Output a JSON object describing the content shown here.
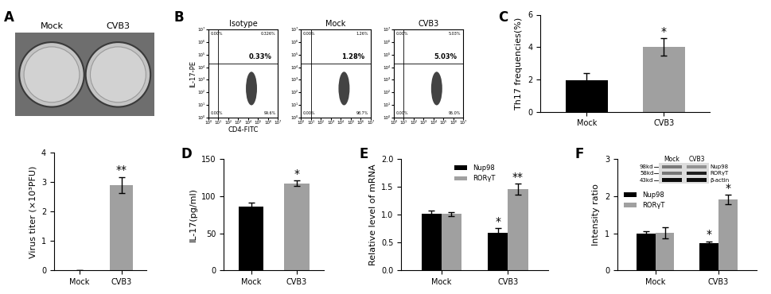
{
  "chart_data": [
    {
      "panel": "A",
      "type": "image",
      "labels": [
        "Mock",
        "CVB3"
      ]
    },
    {
      "type": "bar",
      "categories": [
        "Mock",
        "CVB3"
      ],
      "values": [
        0,
        2.9
      ],
      "errors": [
        0,
        0.28
      ],
      "significance": [
        null,
        "**"
      ],
      "colors": [
        "#000000",
        "#a0a0a0"
      ],
      "y_label": "Virus titer (×10³PFU)",
      "ylim": [
        0,
        4
      ],
      "yticks": [
        0,
        1,
        2,
        3,
        4
      ]
    },
    {
      "panel": "B",
      "type": "scatter",
      "log": true,
      "x_label": "CD4-FITC",
      "y_label": "IL-17-PE",
      "xlim": [
        1,
        10000000
      ],
      "ylim": [
        1,
        10000000
      ],
      "xticks": [
        {
          "value": 1,
          "label": "10⁰"
        },
        {
          "value": 10,
          "label": "10¹"
        },
        {
          "value": 100,
          "label": "10²"
        },
        {
          "value": 1000,
          "label": "10³"
        },
        {
          "value": 10000,
          "label": "10⁴"
        },
        {
          "value": 100000,
          "label": "10⁵"
        },
        {
          "value": 1000000,
          "label": "10⁶"
        },
        {
          "value": 10000000,
          "label": "10⁷"
        }
      ],
      "yticks": [
        {
          "value": 1,
          "label": "10⁰"
        },
        {
          "value": 10,
          "label": "10¹"
        },
        {
          "value": 100,
          "label": "10²"
        },
        {
          "value": 1000,
          "label": "10³"
        },
        {
          "value": 10000,
          "label": "10⁴"
        },
        {
          "value": 100000,
          "label": "10⁵"
        },
        {
          "value": 1000000,
          "label": "10⁶"
        },
        {
          "value": 10000000,
          "label": "10⁷"
        }
      ],
      "gate_x": 10,
      "gate_y": 20000,
      "plots": [
        {
          "title": "Isotype",
          "quadrant_values": [
            0.0,
            0.326,
            0.0,
            99.6
          ],
          "quadrant_labels": [
            "0.00%",
            "0.326%",
            "0.00%",
            "99.6%"
          ],
          "gated_value": 0.33,
          "gated_label": "0.33%"
        },
        {
          "title": "Mock",
          "quadrant_values": [
            0.0,
            1.26,
            0.0,
            98.7
          ],
          "quadrant_labels": [
            "0.00%",
            "1.26%",
            "0.00%",
            "98.7%"
          ],
          "gated_value": 1.28,
          "gated_label": "1.28%"
        },
        {
          "title": "CVB3",
          "quadrant_values": [
            0.0,
            5.03,
            0.0,
            95.0
          ],
          "quadrant_labels": [
            "0.00%",
            "5.03%",
            "0.00%",
            "95.0%"
          ],
          "gated_value": 5.03,
          "gated_label": "5.03%"
        }
      ]
    },
    {
      "panel": "C",
      "type": "bar",
      "categories": [
        "Mock",
        "CVB3"
      ],
      "values": [
        1.95,
        4.0
      ],
      "errors": [
        0.45,
        0.55
      ],
      "significance": [
        null,
        "*"
      ],
      "colors": [
        "#000000",
        "#a0a0a0"
      ],
      "y_label": "Th17 frequencies(%)",
      "ylim": [
        0,
        6
      ],
      "yticks": [
        0,
        2,
        4,
        6
      ]
    },
    {
      "panel": "D",
      "type": "bar",
      "categories": [
        "Mock",
        "CVB3"
      ],
      "values": [
        86,
        117
      ],
      "errors": [
        5,
        4
      ],
      "significance": [
        null,
        "*"
      ],
      "colors": [
        "#000000",
        "#a0a0a0"
      ],
      "y_label": "IL-17(pg/ml)",
      "ylim": [
        0,
        150
      ],
      "yticks": [
        0,
        50,
        100,
        150
      ]
    },
    {
      "panel": "E",
      "type": "bar",
      "categories": [
        "Mock",
        "CVB3"
      ],
      "legend": "upper center",
      "series": [
        {
          "name": "Nup98",
          "color": "#000000",
          "values": [
            1.02,
            0.68
          ],
          "errors": [
            0.05,
            0.08
          ],
          "significance": [
            null,
            "*"
          ]
        },
        {
          "name": "RORγT",
          "color": "#a0a0a0",
          "values": [
            1.01,
            1.45
          ],
          "errors": [
            0.03,
            0.1
          ],
          "significance": [
            null,
            "**"
          ]
        }
      ],
      "y_label": "Relative level of mRNA",
      "ylim": [
        0,
        2
      ],
      "yticks": [
        {
          "value": 0,
          "label": "0.0"
        },
        {
          "value": 0.5,
          "label": "0.5"
        },
        {
          "value": 1,
          "label": "1.0"
        },
        {
          "value": 1.5,
          "label": "1.5"
        },
        {
          "value": 2,
          "label": "2.0"
        }
      ]
    },
    {
      "panel": "F",
      "type": "bar",
      "categories": [
        "Mock",
        "CVB3"
      ],
      "legend": "upper left",
      "series": [
        {
          "name": "Nup98",
          "color": "#000000",
          "values": [
            1.0,
            0.74
          ],
          "errors": [
            0.06,
            0.04
          ],
          "significance": [
            null,
            "*"
          ]
        },
        {
          "name": "RORγT",
          "color": "#a0a0a0",
          "values": [
            1.02,
            1.9
          ],
          "errors": [
            0.15,
            0.13
          ],
          "significance": [
            null,
            "*"
          ]
        }
      ],
      "y_label": "Intensity ratio",
      "ylim": [
        0,
        3
      ],
      "yticks": [
        0,
        1,
        2,
        3
      ],
      "blot": {
        "lanes": [
          "Mock",
          "CVB3"
        ],
        "bands": [
          {
            "size": "98kd",
            "name": "Nup98"
          },
          {
            "size": "58kd",
            "name": "RORγT"
          },
          {
            "size": "43kd",
            "name": "β-actin"
          }
        ]
      }
    }
  ]
}
